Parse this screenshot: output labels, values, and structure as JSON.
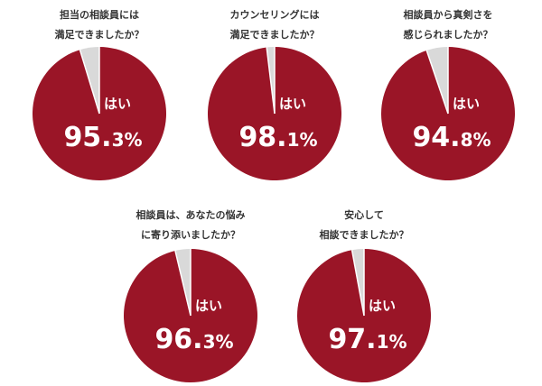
{
  "colors": {
    "yes": "#9a1527",
    "no": "#d9d9d9"
  },
  "chart_data": [
    {
      "type": "pie",
      "question_lines": [
        "担当の相談員には",
        "満足できましたか？"
      ],
      "yes_label": "はい",
      "yes_value": 95.3,
      "no_value": 4.7,
      "value_int": "95.",
      "value_dec": "3%"
    },
    {
      "type": "pie",
      "question_lines": [
        "カウンセリングには",
        "満足できましたか？"
      ],
      "yes_label": "はい",
      "yes_value": 98.1,
      "no_value": 1.9,
      "value_int": "98.",
      "value_dec": "1%"
    },
    {
      "type": "pie",
      "question_lines": [
        "相談員から真剣さを",
        "感じられましたか？"
      ],
      "yes_label": "はい",
      "yes_value": 94.8,
      "no_value": 5.2,
      "value_int": "94.",
      "value_dec": "8%"
    },
    {
      "type": "pie",
      "question_lines": [
        "相談員は、あなたの悩み",
        "に寄り添いましたか？"
      ],
      "yes_label": "はい",
      "yes_value": 96.3,
      "no_value": 3.7,
      "value_int": "96.",
      "value_dec": "3%"
    },
    {
      "type": "pie",
      "question_lines": [
        "安心して",
        "相談できましたか？"
      ],
      "yes_label": "はい",
      "yes_value": 97.1,
      "no_value": 2.9,
      "value_int": "97.",
      "value_dec": "1%"
    }
  ]
}
